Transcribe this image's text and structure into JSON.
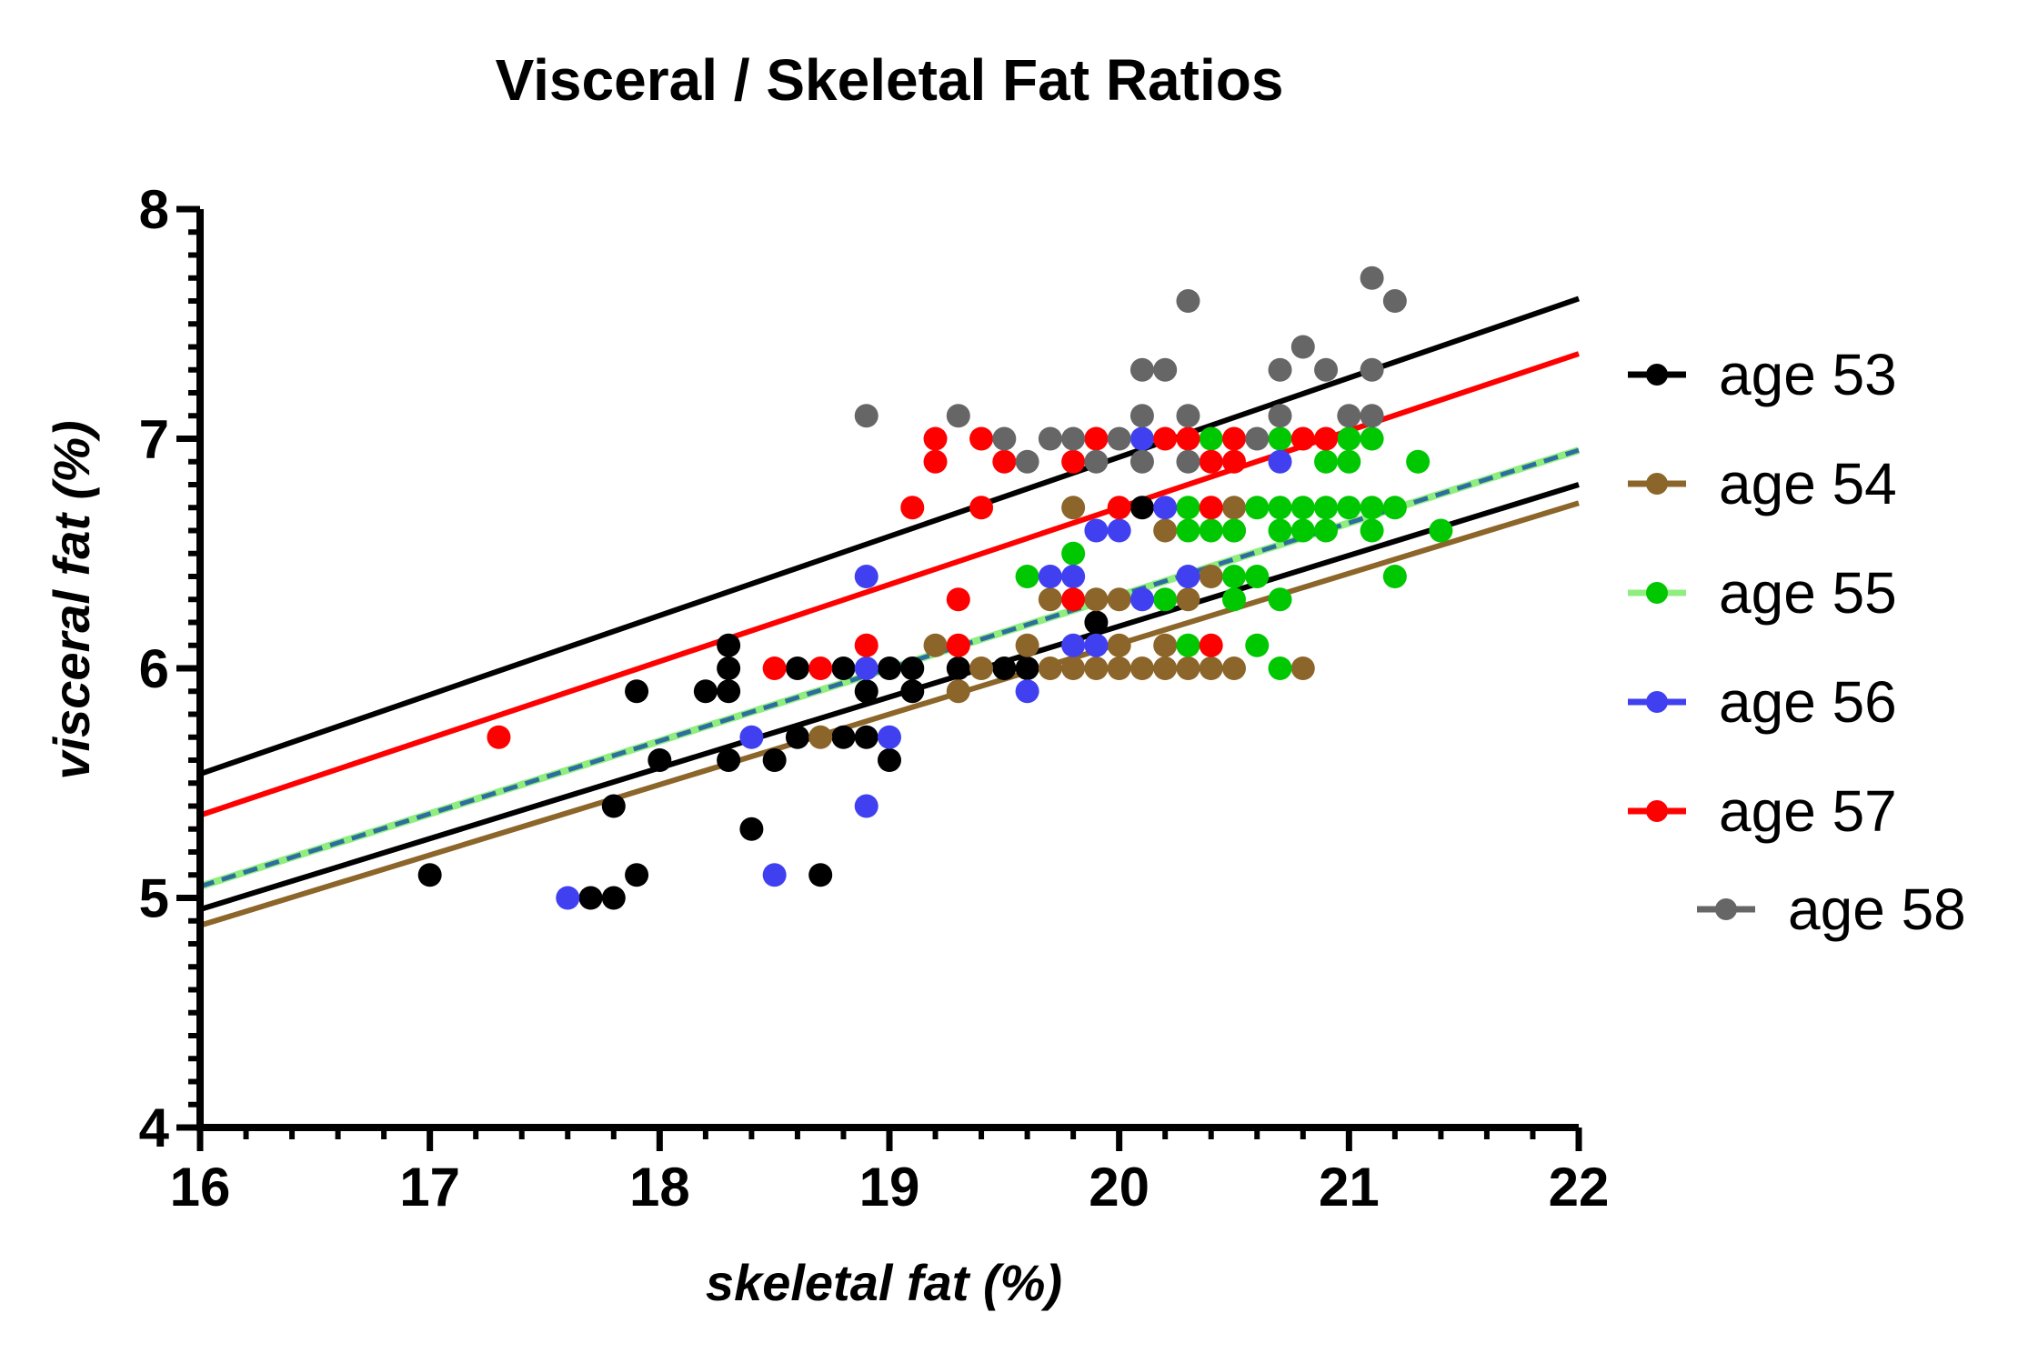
{
  "chart_data": {
    "type": "scatter",
    "title": "Visceral / Skeletal Fat  Ratios",
    "xlabel": "skeletal fat (%)",
    "ylabel": "visceral fat (%)",
    "xlim": [
      16,
      22
    ],
    "ylim": [
      4,
      8
    ],
    "xticks": [
      "16",
      "17",
      "18",
      "19",
      "20",
      "21",
      "22"
    ],
    "yticks": [
      "4",
      "5",
      "6",
      "7",
      "8"
    ],
    "grid": false,
    "legend_position": "right",
    "series": [
      {
        "name": "age 53",
        "color": "#000000",
        "fit": {
          "x": [
            16,
            22
          ],
          "y": [
            4.95,
            6.8
          ],
          "dash": false,
          "width": 6
        },
        "points": [
          [
            17.0,
            5.1
          ],
          [
            17.7,
            5.0
          ],
          [
            17.8,
            5.0
          ],
          [
            17.8,
            5.4
          ],
          [
            17.9,
            5.1
          ],
          [
            17.9,
            5.9
          ],
          [
            18.0,
            5.6
          ],
          [
            18.2,
            5.9
          ],
          [
            18.3,
            5.6
          ],
          [
            18.3,
            5.9
          ],
          [
            18.3,
            6.0
          ],
          [
            18.3,
            6.1
          ],
          [
            18.4,
            5.3
          ],
          [
            18.5,
            5.6
          ],
          [
            18.6,
            5.7
          ],
          [
            18.6,
            6.0
          ],
          [
            18.7,
            5.1
          ],
          [
            18.8,
            5.7
          ],
          [
            18.8,
            6.0
          ],
          [
            18.9,
            5.7
          ],
          [
            18.9,
            5.9
          ],
          [
            19.0,
            5.6
          ],
          [
            19.0,
            6.0
          ],
          [
            19.1,
            5.9
          ],
          [
            19.1,
            6.0
          ],
          [
            19.3,
            6.0
          ],
          [
            19.5,
            6.0
          ],
          [
            19.6,
            6.0
          ],
          [
            19.9,
            6.2
          ],
          [
            20.1,
            6.7
          ]
        ]
      },
      {
        "name": "age 54",
        "color": "#8B6529",
        "fit": {
          "x": [
            16,
            22
          ],
          "y": [
            4.88,
            6.72
          ],
          "dash": false,
          "width": 6
        },
        "points": [
          [
            18.7,
            5.7
          ],
          [
            19.2,
            6.1
          ],
          [
            19.3,
            5.9
          ],
          [
            19.4,
            6.0
          ],
          [
            19.6,
            6.1
          ],
          [
            19.7,
            6.0
          ],
          [
            19.7,
            6.3
          ],
          [
            19.8,
            6.0
          ],
          [
            19.8,
            6.7
          ],
          [
            19.9,
            6.0
          ],
          [
            19.9,
            6.3
          ],
          [
            20.0,
            6.0
          ],
          [
            20.0,
            6.1
          ],
          [
            20.0,
            6.3
          ],
          [
            20.1,
            6.0
          ],
          [
            20.2,
            6.0
          ],
          [
            20.2,
            6.1
          ],
          [
            20.2,
            6.6
          ],
          [
            20.3,
            6.0
          ],
          [
            20.3,
            6.3
          ],
          [
            20.4,
            6.0
          ],
          [
            20.4,
            6.4
          ],
          [
            20.5,
            6.0
          ],
          [
            20.5,
            6.6
          ],
          [
            20.5,
            6.7
          ],
          [
            20.8,
            6.0
          ]
        ]
      },
      {
        "name": "age 55",
        "color": "#00C800",
        "fit": {
          "x": [
            16,
            22
          ],
          "y": [
            5.05,
            6.95
          ],
          "dash": false,
          "width": 8,
          "color": "#90EE80"
        },
        "points": [
          [
            19.6,
            6.4
          ],
          [
            19.8,
            6.5
          ],
          [
            20.2,
            6.3
          ],
          [
            20.3,
            6.1
          ],
          [
            20.3,
            6.6
          ],
          [
            20.3,
            6.7
          ],
          [
            20.4,
            6.6
          ],
          [
            20.4,
            7.0
          ],
          [
            20.5,
            6.3
          ],
          [
            20.5,
            6.4
          ],
          [
            20.5,
            6.6
          ],
          [
            20.6,
            6.1
          ],
          [
            20.6,
            6.4
          ],
          [
            20.6,
            6.7
          ],
          [
            20.7,
            6.0
          ],
          [
            20.7,
            6.3
          ],
          [
            20.7,
            6.6
          ],
          [
            20.7,
            6.7
          ],
          [
            20.7,
            7.0
          ],
          [
            20.8,
            6.6
          ],
          [
            20.8,
            6.7
          ],
          [
            20.9,
            6.6
          ],
          [
            20.9,
            6.7
          ],
          [
            20.9,
            6.9
          ],
          [
            21.0,
            6.7
          ],
          [
            21.0,
            6.9
          ],
          [
            21.0,
            7.0
          ],
          [
            21.1,
            6.6
          ],
          [
            21.1,
            6.7
          ],
          [
            21.1,
            7.0
          ],
          [
            21.2,
            6.4
          ],
          [
            21.2,
            6.7
          ],
          [
            21.3,
            6.9
          ],
          [
            21.4,
            6.6
          ]
        ]
      },
      {
        "name": "age 56",
        "color": "#4040F0",
        "fit": {
          "x": [
            16,
            22
          ],
          "y": [
            5.05,
            6.95
          ],
          "dash": true,
          "width": 5,
          "color": "#2E6E9E"
        },
        "points": [
          [
            17.6,
            5.0
          ],
          [
            18.4,
            5.7
          ],
          [
            18.5,
            5.1
          ],
          [
            18.9,
            5.4
          ],
          [
            18.9,
            6.0
          ],
          [
            18.9,
            6.4
          ],
          [
            19.0,
            5.7
          ],
          [
            19.6,
            5.9
          ],
          [
            19.7,
            6.4
          ],
          [
            19.8,
            6.1
          ],
          [
            19.8,
            6.4
          ],
          [
            19.9,
            6.1
          ],
          [
            19.9,
            6.6
          ],
          [
            20.0,
            6.6
          ],
          [
            20.1,
            6.3
          ],
          [
            20.1,
            7.0
          ],
          [
            20.2,
            6.7
          ],
          [
            20.3,
            6.4
          ],
          [
            20.7,
            6.9
          ]
        ]
      },
      {
        "name": "age 57",
        "color": "#FF0000",
        "fit": {
          "x": [
            16,
            22
          ],
          "y": [
            5.36,
            7.37
          ],
          "dash": false,
          "width": 6
        },
        "points": [
          [
            17.3,
            5.7
          ],
          [
            18.5,
            6.0
          ],
          [
            18.7,
            6.0
          ],
          [
            18.9,
            6.1
          ],
          [
            19.1,
            6.7
          ],
          [
            19.2,
            6.9
          ],
          [
            19.2,
            7.0
          ],
          [
            19.3,
            6.1
          ],
          [
            19.3,
            6.3
          ],
          [
            19.4,
            6.7
          ],
          [
            19.4,
            7.0
          ],
          [
            19.5,
            6.9
          ],
          [
            19.8,
            6.3
          ],
          [
            19.8,
            6.9
          ],
          [
            19.9,
            7.0
          ],
          [
            20.0,
            6.7
          ],
          [
            20.2,
            7.0
          ],
          [
            20.3,
            7.0
          ],
          [
            20.4,
            6.1
          ],
          [
            20.4,
            6.7
          ],
          [
            20.4,
            6.9
          ],
          [
            20.5,
            6.9
          ],
          [
            20.5,
            7.0
          ],
          [
            20.8,
            7.0
          ],
          [
            20.9,
            7.0
          ]
        ]
      },
      {
        "name": "age 58",
        "color": "#666666",
        "fit": {
          "x": [
            16,
            22
          ],
          "y": [
            5.54,
            7.61
          ],
          "dash": false,
          "width": 6,
          "color": "#000000"
        },
        "points": [
          [
            18.9,
            7.1
          ],
          [
            19.3,
            7.1
          ],
          [
            19.5,
            7.0
          ],
          [
            19.6,
            6.9
          ],
          [
            19.7,
            7.0
          ],
          [
            19.8,
            7.0
          ],
          [
            19.9,
            6.9
          ],
          [
            20.0,
            7.0
          ],
          [
            20.1,
            6.9
          ],
          [
            20.1,
            7.1
          ],
          [
            20.1,
            7.3
          ],
          [
            20.2,
            7.3
          ],
          [
            20.3,
            6.9
          ],
          [
            20.3,
            7.1
          ],
          [
            20.3,
            7.6
          ],
          [
            20.6,
            7.0
          ],
          [
            20.7,
            7.1
          ],
          [
            20.7,
            7.3
          ],
          [
            20.8,
            7.4
          ],
          [
            20.9,
            7.3
          ],
          [
            21.0,
            7.1
          ],
          [
            21.1,
            7.1
          ],
          [
            21.1,
            7.3
          ],
          [
            21.1,
            7.7
          ],
          [
            21.2,
            7.6
          ]
        ]
      }
    ]
  }
}
